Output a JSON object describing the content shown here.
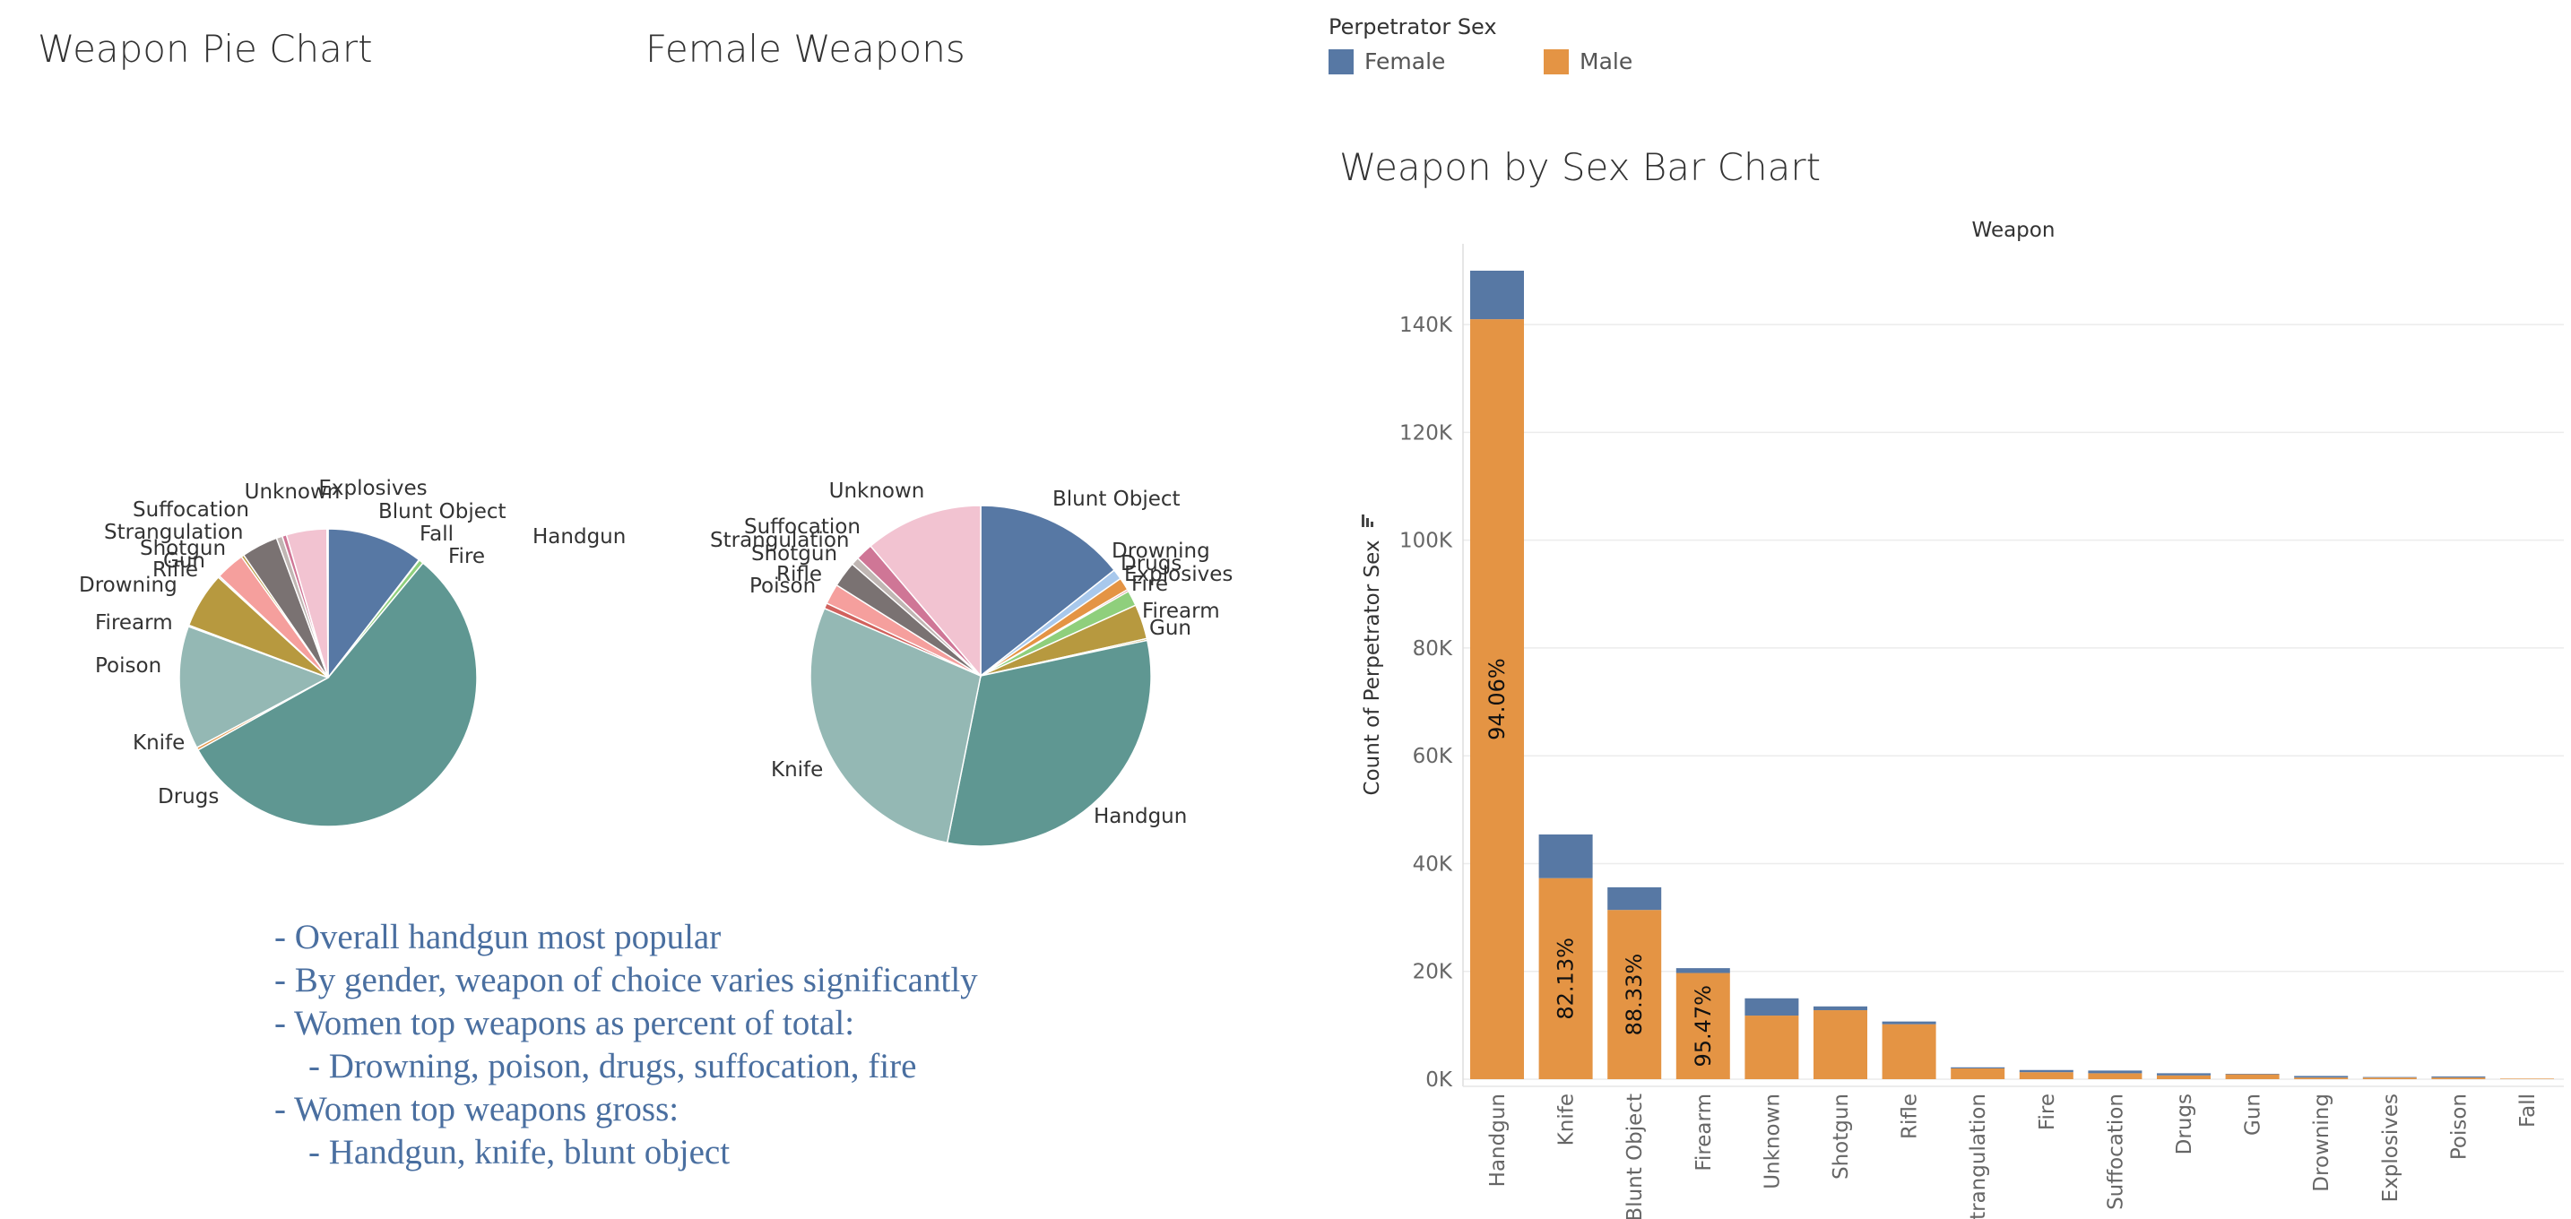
{
  "titles": {
    "pie_overall": "Weapon Pie Chart",
    "pie_female": "Female Weapons",
    "bar": "Weapon by Sex Bar Chart"
  },
  "legend": {
    "title": "Perpetrator Sex",
    "items": [
      {
        "label": "Female",
        "color": "#5778a4"
      },
      {
        "label": "Male",
        "color": "#e49444"
      }
    ]
  },
  "notes": [
    "- Overall handgun most popular",
    "- By gender, weapon of choice varies significantly",
    "- Women top weapons as percent of total:",
    "- Drowning, poison, drugs, suffocation, fire",
    "- Women top weapons gross:",
    "- Handgun, knife, blunt object"
  ],
  "colors": {
    "Blunt Object": "#5778a4",
    "Handgun": "#5f9792",
    "Knife": "#94b8b4",
    "Firearm": "#b7993f",
    "Fire": "#8fcf7c",
    "Gun": "#b7993f",
    "Drowning": "#a8c8ec",
    "Drugs": "#e49444",
    "Explosives": "#d1615d",
    "Fall": "#85b6b2",
    "Poison": "#d1615d",
    "Rifle": "#f59f9d",
    "Shotgun": "#7a7272",
    "Strangulation": "#c0b6b3",
    "Suffocation": "#cf7696",
    "Unknown": "#f2c3d1"
  },
  "chart_data": [
    {
      "type": "pie",
      "title": "Weapon Pie Chart",
      "labels": [
        "Blunt Object",
        "Fall",
        "Fire",
        "Handgun",
        "Drugs",
        "Knife",
        "Poison",
        "Firearm",
        "Drowning",
        "Rifle",
        "Gun",
        "Shotgun",
        "Strangulation",
        "Suffocation",
        "Unknown",
        "Explosives"
      ],
      "values": [
        35.6,
        0.2,
        1.7,
        190.4,
        1.0,
        45.6,
        0.5,
        20.6,
        0.6,
        10.7,
        1.0,
        13.5,
        2.2,
        1.6,
        15.0,
        0.4
      ],
      "unit": "thousands of incidents"
    },
    {
      "type": "pie",
      "title": "Female Weapons",
      "labels": [
        "Blunt Object",
        "Drowning",
        "Drugs",
        "Explosives",
        "Fire",
        "Firearm",
        "Gun",
        "Handgun",
        "Knife",
        "Poison",
        "Rifle",
        "Shotgun",
        "Strangulation",
        "Suffocation",
        "Unknown"
      ],
      "values": [
        4.1,
        0.28,
        0.35,
        0.05,
        0.42,
        0.94,
        0.05,
        9.0,
        8.1,
        0.15,
        0.55,
        0.7,
        0.22,
        0.47,
        3.2
      ],
      "unit": "thousands of incidents"
    },
    {
      "type": "bar",
      "title": "Weapon by Sex Bar Chart",
      "stacked": true,
      "xlabel": "Weapon",
      "ylabel": "Count of Perpetrator Sex",
      "categories": [
        "Handgun",
        "Knife",
        "Blunt Object",
        "Firearm",
        "Unknown",
        "Shotgun",
        "Rifle",
        "Strangulation",
        "Fire",
        "Suffocation",
        "Drugs",
        "Gun",
        "Drowning",
        "Explosives",
        "Poison",
        "Fall"
      ],
      "series": [
        {
          "name": "Male",
          "values": [
            141000,
            37300,
            31400,
            19700,
            11800,
            12800,
            10200,
            2000,
            1300,
            1100,
            700,
            900,
            300,
            300,
            300,
            100
          ]
        },
        {
          "name": "Female",
          "values": [
            9000,
            8100,
            4200,
            900,
            3200,
            700,
            500,
            200,
            400,
            500,
            400,
            100,
            300,
            100,
            200,
            0
          ]
        }
      ],
      "bar_labels": [
        {
          "category": "Handgun",
          "text": "94.06%"
        },
        {
          "category": "Knife",
          "text": "82.13%"
        },
        {
          "category": "Blunt Object",
          "text": "88.33%"
        },
        {
          "category": "Firearm",
          "text": "95.47%"
        }
      ],
      "yticks": [
        {
          "value": 0,
          "label": "0K"
        },
        {
          "value": 20000,
          "label": "20K"
        },
        {
          "value": 40000,
          "label": "40K"
        },
        {
          "value": 60000,
          "label": "60K"
        },
        {
          "value": 80000,
          "label": "80K"
        },
        {
          "value": 100000,
          "label": "100K"
        },
        {
          "value": 120000,
          "label": "120K"
        },
        {
          "value": 140000,
          "label": "140K"
        }
      ],
      "ylim": [
        0,
        150000
      ],
      "grid": true
    }
  ]
}
